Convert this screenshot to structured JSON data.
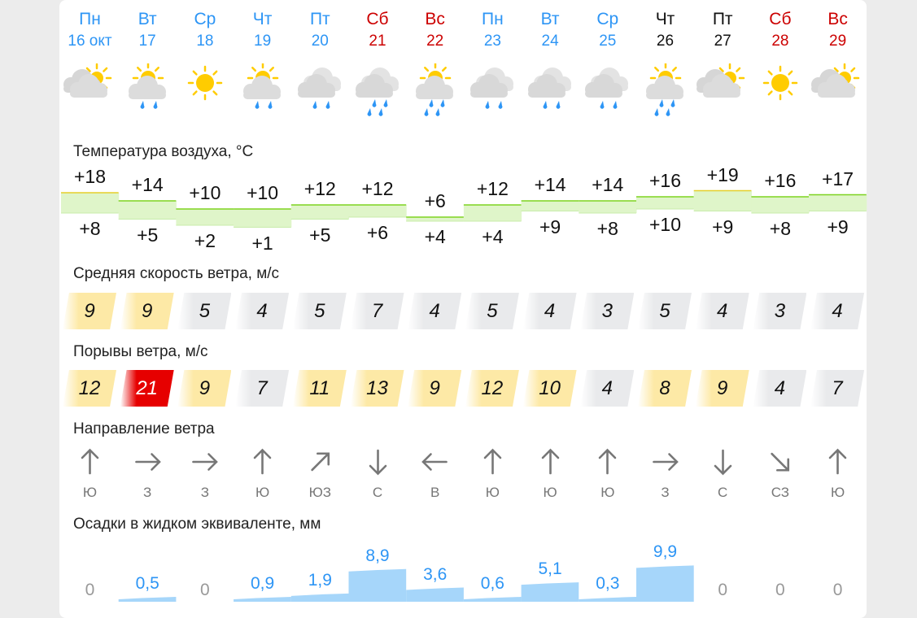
{
  "days": [
    {
      "name": "Пн",
      "date": "16 окт",
      "color": "#2d95f5",
      "icon": "partly-cloudy",
      "rain": 0,
      "tmax": 18,
      "tmin": 8,
      "tmax_label": "+18",
      "tmin_label": "+8",
      "wind": "9",
      "gust": "12",
      "dir": "Ю",
      "deg": 0,
      "precip": "0",
      "p": 0
    },
    {
      "name": "Вт",
      "date": "17",
      "color": "#2d95f5",
      "icon": "sun-cloud",
      "rain": 2,
      "tmax": 14,
      "tmin": 5,
      "tmax_label": "+14",
      "tmin_label": "+5",
      "wind": "9",
      "gust": "21",
      "dir": "З",
      "deg": 90,
      "precip": "0,5",
      "p": 0.5
    },
    {
      "name": "Ср",
      "date": "18",
      "color": "#2d95f5",
      "icon": "sun",
      "rain": 0,
      "tmax": 10,
      "tmin": 2,
      "tmax_label": "+10",
      "tmin_label": "+2",
      "wind": "5",
      "gust": "9",
      "dir": "З",
      "deg": 90,
      "precip": "0",
      "p": 0
    },
    {
      "name": "Чт",
      "date": "19",
      "color": "#2d95f5",
      "icon": "sun-cloud",
      "rain": 2,
      "tmax": 10,
      "tmin": 1,
      "tmax_label": "+10",
      "tmin_label": "+1",
      "wind": "4",
      "gust": "7",
      "dir": "Ю",
      "deg": 0,
      "precip": "0,9",
      "p": 0.9
    },
    {
      "name": "Пт",
      "date": "20",
      "color": "#2d95f5",
      "icon": "cloudy",
      "rain": 2,
      "tmax": 12,
      "tmin": 5,
      "tmax_label": "+12",
      "tmin_label": "+5",
      "wind": "5",
      "gust": "11",
      "dir": "ЮЗ",
      "deg": 45,
      "precip": "1,9",
      "p": 1.9
    },
    {
      "name": "Сб",
      "date": "21",
      "color": "#cc0000",
      "icon": "cloudy",
      "rain": 4,
      "tmax": 12,
      "tmin": 6,
      "tmax_label": "+12",
      "tmin_label": "+6",
      "wind": "7",
      "gust": "13",
      "dir": "С",
      "deg": 180,
      "precip": "8,9",
      "p": 8.9
    },
    {
      "name": "Вс",
      "date": "22",
      "color": "#cc0000",
      "icon": "sun-cloud",
      "rain": 4,
      "tmax": 6,
      "tmin": 4,
      "tmax_label": "+6",
      "tmin_label": "+4",
      "wind": "4",
      "gust": "9",
      "dir": "В",
      "deg": 270,
      "precip": "3,6",
      "p": 3.6
    },
    {
      "name": "Пн",
      "date": "23",
      "color": "#2d95f5",
      "icon": "cloudy",
      "rain": 2,
      "tmax": 12,
      "tmin": 4,
      "tmax_label": "+12",
      "tmin_label": "+4",
      "wind": "5",
      "gust": "12",
      "dir": "Ю",
      "deg": 0,
      "precip": "0,6",
      "p": 0.6
    },
    {
      "name": "Вт",
      "date": "24",
      "color": "#2d95f5",
      "icon": "cloudy",
      "rain": 2,
      "tmax": 14,
      "tmin": 9,
      "tmax_label": "+14",
      "tmin_label": "+9",
      "wind": "4",
      "gust": "10",
      "dir": "Ю",
      "deg": 0,
      "precip": "5,1",
      "p": 5.1
    },
    {
      "name": "Ср",
      "date": "25",
      "color": "#2d95f5",
      "icon": "cloudy",
      "rain": 2,
      "tmax": 14,
      "tmin": 8,
      "tmax_label": "+14",
      "tmin_label": "+8",
      "wind": "3",
      "gust": "4",
      "dir": "Ю",
      "deg": 0,
      "precip": "0,3",
      "p": 0.3
    },
    {
      "name": "Чт",
      "date": "26",
      "color": "#111111",
      "icon": "sun-cloud",
      "rain": 4,
      "tmax": 16,
      "tmin": 10,
      "tmax_label": "+16",
      "tmin_label": "+10",
      "wind": "5",
      "gust": "8",
      "dir": "З",
      "deg": 90,
      "precip": "9,9",
      "p": 9.9
    },
    {
      "name": "Пт",
      "date": "27",
      "color": "#111111",
      "icon": "partly-cloudy",
      "rain": 0,
      "tmax": 19,
      "tmin": 9,
      "tmax_label": "+19",
      "tmin_label": "+9",
      "wind": "4",
      "gust": "9",
      "dir": "С",
      "deg": 180,
      "precip": "0",
      "p": 0
    },
    {
      "name": "Сб",
      "date": "28",
      "color": "#cc0000",
      "icon": "sun",
      "rain": 0,
      "tmax": 16,
      "tmin": 8,
      "tmax_label": "+16",
      "tmin_label": "+8",
      "wind": "3",
      "gust": "4",
      "dir": "СЗ",
      "deg": 135,
      "precip": "0",
      "p": 0
    },
    {
      "name": "Вс",
      "date": "29",
      "color": "#cc0000",
      "icon": "partly-cloudy",
      "rain": 0,
      "tmax": 17,
      "tmin": 9,
      "tmax_label": "+17",
      "tmin_label": "+9",
      "wind": "4",
      "gust": "7",
      "dir": "Ю",
      "deg": 0,
      "precip": "0",
      "p": 0
    }
  ],
  "labels": {
    "temperature": "Температура воздуха, °C",
    "wind_speed": "Средняя скорость ветра, м/с",
    "wind_gust": "Порывы ветра, м/с",
    "wind_dir": "Направление ветра",
    "precip": "Осадки в жидком эквиваленте, мм"
  },
  "colors": {
    "calm": "#e9eaec",
    "moderate": "#fde9a6",
    "strong": "#e60000",
    "precip_bar": "#a6d6fa",
    "precip_text": "#2d95f5",
    "precip_zero": "#999999",
    "temp_fill": "#dff5c9",
    "temp_line": "#7ed321",
    "temp_line_warm": "#e6cf2a"
  }
}
